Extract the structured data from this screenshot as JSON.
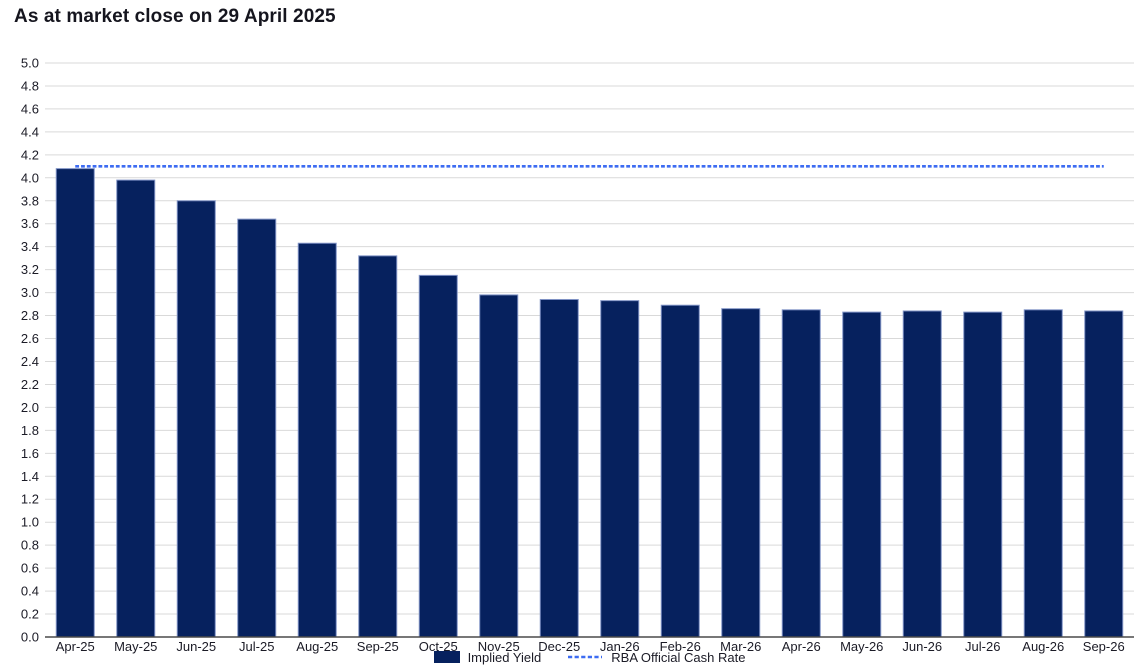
{
  "title": "As at market close on 29 April 2025",
  "legend": {
    "implied_yield_label": "Implied Yield",
    "rba_label": "RBA Official Cash Rate"
  },
  "colors": {
    "bar_fill": "#06215e",
    "bar_stroke": "#8093c5",
    "rba_line": "#3d6cf2",
    "grid": "#d9d9d9",
    "axis": "#4a4a4a",
    "text": "#1b1b26",
    "title_text": "#15151e"
  },
  "chart_data": {
    "type": "bar",
    "title": "As at market close on 29 April 2025",
    "xlabel": "",
    "ylabel": "",
    "categories": [
      "Apr-25",
      "May-25",
      "Jun-25",
      "Jul-25",
      "Aug-25",
      "Sep-25",
      "Oct-25",
      "Nov-25",
      "Dec-25",
      "Jan-26",
      "Feb-26",
      "Mar-26",
      "Apr-26",
      "May-26",
      "Jun-26",
      "Jul-26",
      "Aug-26",
      "Sep-26"
    ],
    "series": [
      {
        "name": "Implied Yield",
        "type": "bar",
        "values": [
          4.08,
          3.98,
          3.8,
          3.64,
          3.43,
          3.32,
          3.15,
          2.98,
          2.94,
          2.93,
          2.89,
          2.86,
          2.85,
          2.83,
          2.84,
          2.83,
          2.85,
          2.84
        ]
      },
      {
        "name": "RBA Official Cash Rate",
        "type": "line",
        "style": "dashed",
        "constant": true,
        "value": 4.1
      }
    ],
    "ylim": [
      0.0,
      5.0
    ],
    "ytick_step": 0.2,
    "yticks": [
      "0.0",
      "0.2",
      "0.4",
      "0.6",
      "0.8",
      "1.0",
      "1.2",
      "1.4",
      "1.6",
      "1.8",
      "2.0",
      "2.2",
      "2.4",
      "2.6",
      "2.8",
      "3.0",
      "3.2",
      "3.4",
      "3.6",
      "3.8",
      "4.0",
      "4.2",
      "4.4",
      "4.6",
      "4.8",
      "5.0"
    ],
    "grid": true,
    "legend_position": "bottom-center"
  }
}
